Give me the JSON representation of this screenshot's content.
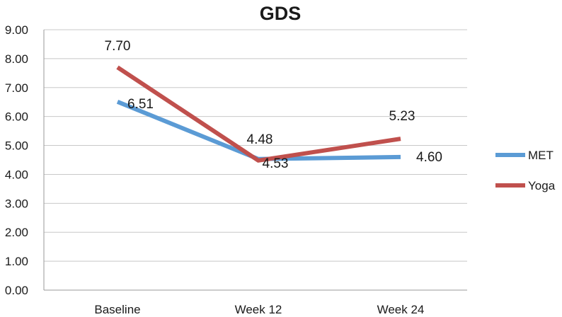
{
  "chart_data": {
    "type": "line",
    "title": "GDS",
    "categories": [
      "Baseline",
      "Week 12",
      "Week 24"
    ],
    "ylim": [
      0,
      9
    ],
    "yticks": [
      "0.00",
      "1.00",
      "2.00",
      "3.00",
      "4.00",
      "5.00",
      "6.00",
      "7.00",
      "8.00",
      "9.00"
    ],
    "grid": true,
    "legend_position": "right",
    "series": [
      {
        "name": "MET",
        "color": "#5b9bd5",
        "values": [
          6.51,
          4.53,
          4.6
        ],
        "labels": [
          "6.51",
          "4.53",
          "4.60"
        ]
      },
      {
        "name": "Yoga",
        "color": "#c0504d",
        "values": [
          7.7,
          4.48,
          5.23
        ],
        "labels": [
          "7.70",
          "4.48",
          "5.23"
        ]
      }
    ]
  }
}
